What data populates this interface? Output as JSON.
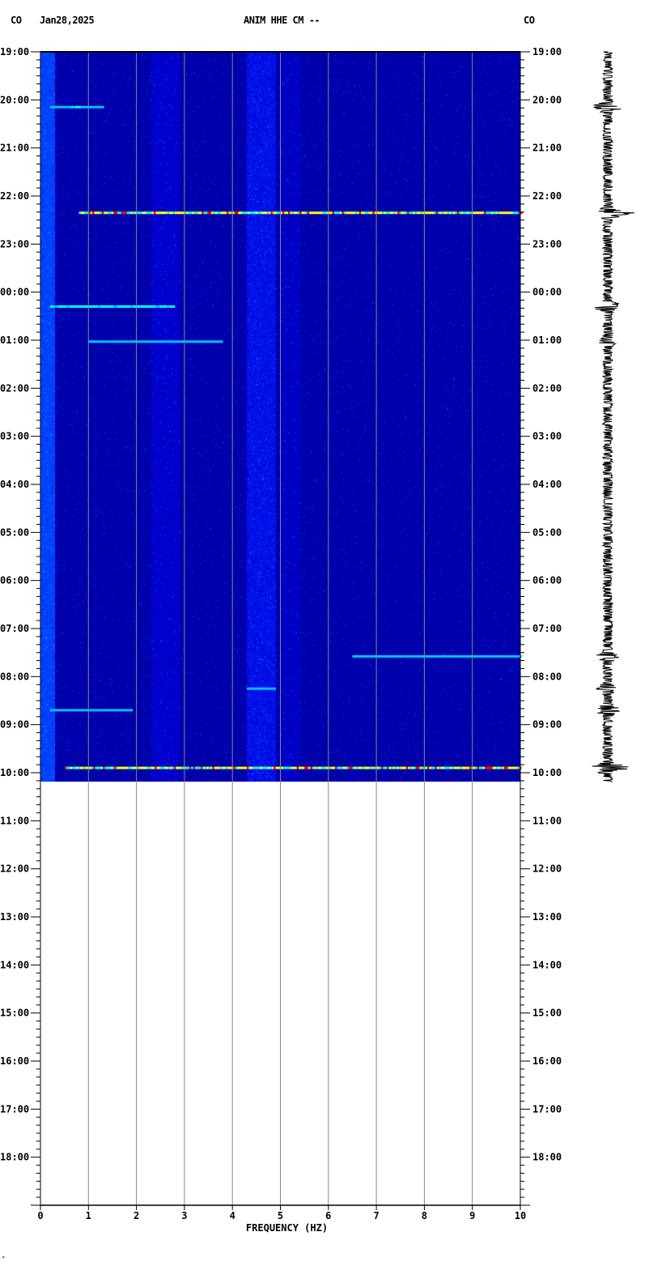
{
  "header": {
    "network_left": "CO",
    "date": "Jan28,2025",
    "station": "ANIM HHE CM --",
    "network_right": "CO"
  },
  "footer_mark": "ᴹ",
  "chart_data": {
    "type": "heatmap",
    "xlabel": "FREQUENCY (HZ)",
    "xlim": [
      0,
      10
    ],
    "x_ticks": [
      "0",
      "1",
      "2",
      "3",
      "4",
      "5",
      "6",
      "7",
      "8",
      "9",
      "10"
    ],
    "y_ticks": [
      "19:00",
      "20:00",
      "21:00",
      "22:00",
      "23:00",
      "00:00",
      "01:00",
      "02:00",
      "03:00",
      "04:00",
      "05:00",
      "06:00",
      "07:00",
      "08:00",
      "09:00",
      "10:00",
      "11:00",
      "12:00",
      "13:00",
      "14:00",
      "15:00",
      "16:00",
      "17:00",
      "18:00"
    ],
    "y_range_hours": [
      0,
      24
    ],
    "data_end_hour": 15.2,
    "grid": true,
    "colormap": [
      "#00008b",
      "#0000ff",
      "#00bfff",
      "#00ffff",
      "#ffff00",
      "#ff0000"
    ],
    "events": [
      {
        "hour": 1.15,
        "fmin": 0.2,
        "fmax": 1.3,
        "intensity": 0.55
      },
      {
        "hour": 3.35,
        "fmin": 0.8,
        "fmax": 10,
        "intensity": 0.95
      },
      {
        "hour": 5.3,
        "fmin": 0.2,
        "fmax": 2.8,
        "intensity": 0.7
      },
      {
        "hour": 6.03,
        "fmin": 1.0,
        "fmax": 3.8,
        "intensity": 0.3
      },
      {
        "hour": 12.58,
        "fmin": 6.5,
        "fmax": 10,
        "intensity": 0.35
      },
      {
        "hour": 13.25,
        "fmin": 4.3,
        "fmax": 4.9,
        "intensity": 0.4
      },
      {
        "hour": 13.7,
        "fmin": 0.2,
        "fmax": 1.9,
        "intensity": 0.5
      },
      {
        "hour": 14.9,
        "fmin": 0.5,
        "fmax": 10,
        "intensity": 0.95
      }
    ]
  }
}
